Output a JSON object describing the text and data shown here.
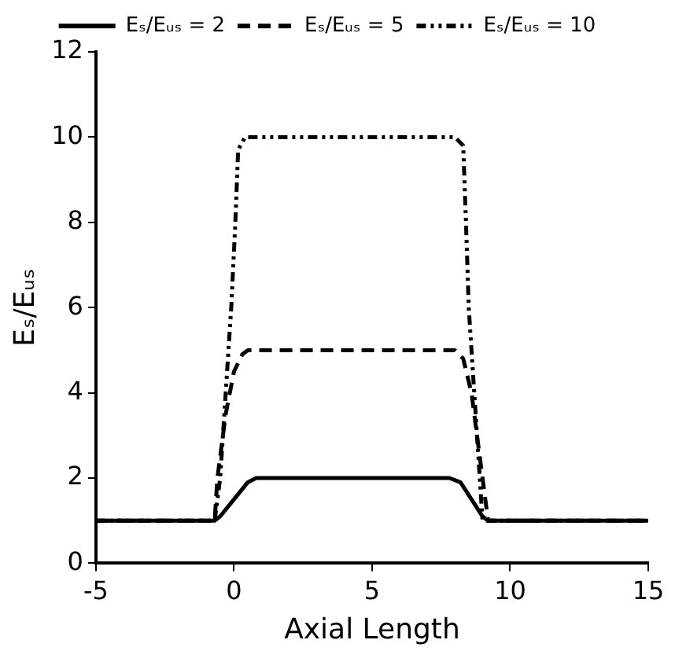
{
  "chart_data": {
    "type": "line",
    "xlabel": "Axial Length",
    "ylabel": "Eₛ/Eᵤₛ",
    "xlim": [
      -5,
      15
    ],
    "xticks": [
      -5,
      0,
      5,
      10,
      15
    ],
    "ylim": [
      0,
      12
    ],
    "yticks": [
      0,
      2,
      4,
      6,
      8,
      10,
      12
    ],
    "grid": false,
    "legend": "top",
    "marker": "none",
    "series": [
      {
        "name": "Eₛ/Eᵤₛ = 2",
        "color": "#000000",
        "line_style": "solid",
        "x": [
          -5,
          -0.7,
          -0.5,
          0,
          0.5,
          0.8,
          7.8,
          8.2,
          8.6,
          9.0,
          9.2,
          15
        ],
        "values": [
          1,
          1,
          1.1,
          1.5,
          1.9,
          2,
          2,
          1.9,
          1.5,
          1.1,
          1,
          1
        ]
      },
      {
        "name": "Eₛ/Eᵤₛ = 5",
        "color": "#000000",
        "line_style": "dashed",
        "x": [
          -5,
          -0.7,
          -0.6,
          -0.3,
          0,
          0.3,
          0.5,
          8.0,
          8.3,
          8.6,
          8.9,
          9.2,
          15
        ],
        "values": [
          1,
          1,
          2,
          3.5,
          4.5,
          4.9,
          5,
          5,
          4.8,
          4,
          2.5,
          1,
          1
        ]
      },
      {
        "name": "Eₛ/Eᵤₛ = 10",
        "color": "#000000",
        "line_style": "dotted",
        "x": [
          -5,
          -0.7,
          -0.5,
          -0.3,
          -0.1,
          0.05,
          0.15,
          0.4,
          8.0,
          8.3,
          8.4,
          8.5,
          8.7,
          9.0,
          15
        ],
        "values": [
          1,
          1,
          2,
          4,
          6,
          8,
          9.7,
          10,
          10,
          9.8,
          8,
          6,
          4,
          1,
          1
        ]
      }
    ]
  }
}
